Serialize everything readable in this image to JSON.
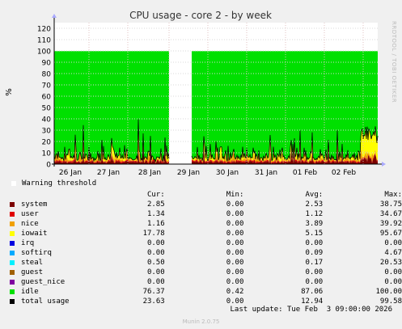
{
  "chart_data": {
    "type": "area",
    "title": "CPU usage - core 2 - by week",
    "ylabel": "%",
    "ylim": [
      0,
      125
    ],
    "yticks": [
      0,
      10,
      20,
      30,
      40,
      50,
      60,
      70,
      80,
      90,
      100,
      110,
      120
    ],
    "xticks": [
      "26 Jan",
      "27 Jan",
      "28 Jan",
      "29 Jan",
      "30 Jan",
      "31 Jan",
      "01 Feb",
      "02 Feb"
    ],
    "gap_day": "29 Jan",
    "max_level": 100,
    "grid": true,
    "legend_position": "bottom",
    "series_order_bottom_to_top": [
      "system",
      "user",
      "nice",
      "iowait",
      "idle"
    ],
    "peaks_total_usage": [
      38.75,
      99.58
    ]
  },
  "side_text": "RRDTOOL / TOBI OETIKER",
  "warning": "Warning threshold",
  "headers": {
    "cur": "Cur:",
    "min": "Min:",
    "avg": "Avg:",
    "max": "Max:"
  },
  "legend": [
    {
      "name": "system",
      "color": "#7b0000",
      "cur": "2.85",
      "min": "0.00",
      "avg": "2.53",
      "max": "38.75"
    },
    {
      "name": "user",
      "color": "#e00000",
      "cur": "1.34",
      "min": "0.00",
      "avg": "1.12",
      "max": "34.67"
    },
    {
      "name": "nice",
      "color": "#f0a000",
      "cur": "1.16",
      "min": "0.00",
      "avg": "3.89",
      "max": "39.92"
    },
    {
      "name": "iowait",
      "color": "#ffff00",
      "cur": "17.78",
      "min": "0.00",
      "avg": "5.15",
      "max": "95.67"
    },
    {
      "name": "irq",
      "color": "#0000e0",
      "cur": "0.00",
      "min": "0.00",
      "avg": "0.00",
      "max": "0.00"
    },
    {
      "name": "softirq",
      "color": "#00aaff",
      "cur": "0.00",
      "min": "0.00",
      "avg": "0.09",
      "max": "4.67"
    },
    {
      "name": "steal",
      "color": "#00f0ff",
      "cur": "0.50",
      "min": "0.00",
      "avg": "0.17",
      "max": "20.53"
    },
    {
      "name": "guest",
      "color": "#a06000",
      "cur": "0.00",
      "min": "0.00",
      "avg": "0.00",
      "max": "0.00"
    },
    {
      "name": "guest_nice",
      "color": "#8000a0",
      "cur": "0.00",
      "min": "0.00",
      "avg": "0.00",
      "max": "0.00"
    },
    {
      "name": "idle",
      "color": "#00e000",
      "cur": "76.37",
      "min": "0.42",
      "avg": "87.06",
      "max": "100.00"
    },
    {
      "name": "total usage",
      "color": "#000000",
      "cur": "23.63",
      "min": "0.00",
      "avg": "12.94",
      "max": "99.58"
    }
  ],
  "footer": "Last update: Tue Feb  3 09:00:00 2026",
  "munin": "Munin 2.0.75"
}
